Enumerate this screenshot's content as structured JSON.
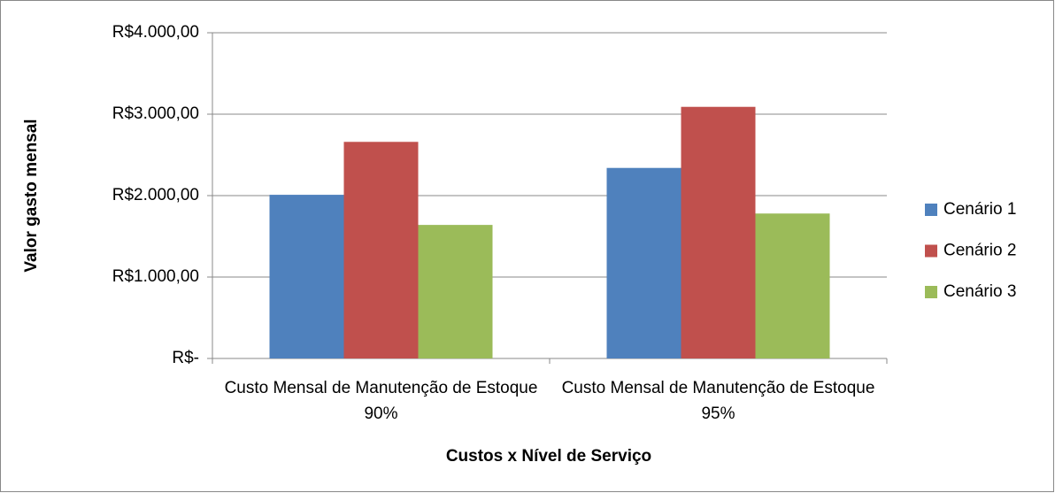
{
  "chart_data": {
    "type": "bar",
    "categories": [
      "Custo Mensal de Manutenção de Estoque 90%",
      "Custo Mensal de Manutenção de Estoque 95%"
    ],
    "series": [
      {
        "name": "Cenário 1",
        "color": "#4f81bd",
        "values": [
          2010,
          2340
        ]
      },
      {
        "name": "Cenário 2",
        "color": "#c0504d",
        "values": [
          2660,
          3090
        ]
      },
      {
        "name": "Cenário 3",
        "color": "#9bbb59",
        "values": [
          1640,
          1780
        ]
      }
    ],
    "xlabel": "Custos x Nível de Serviço",
    "ylabel": "Valor gasto mensal",
    "ylim": [
      0,
      4000
    ],
    "yticks": [
      {
        "value": 0,
        "label": "R$-"
      },
      {
        "value": 1000,
        "label": "R$1.000,00"
      },
      {
        "value": 2000,
        "label": "R$2.000,00"
      },
      {
        "value": 3000,
        "label": "R$3.000,00"
      },
      {
        "value": 4000,
        "label": "R$4.000,00"
      }
    ],
    "grid": true,
    "legend": "right"
  }
}
